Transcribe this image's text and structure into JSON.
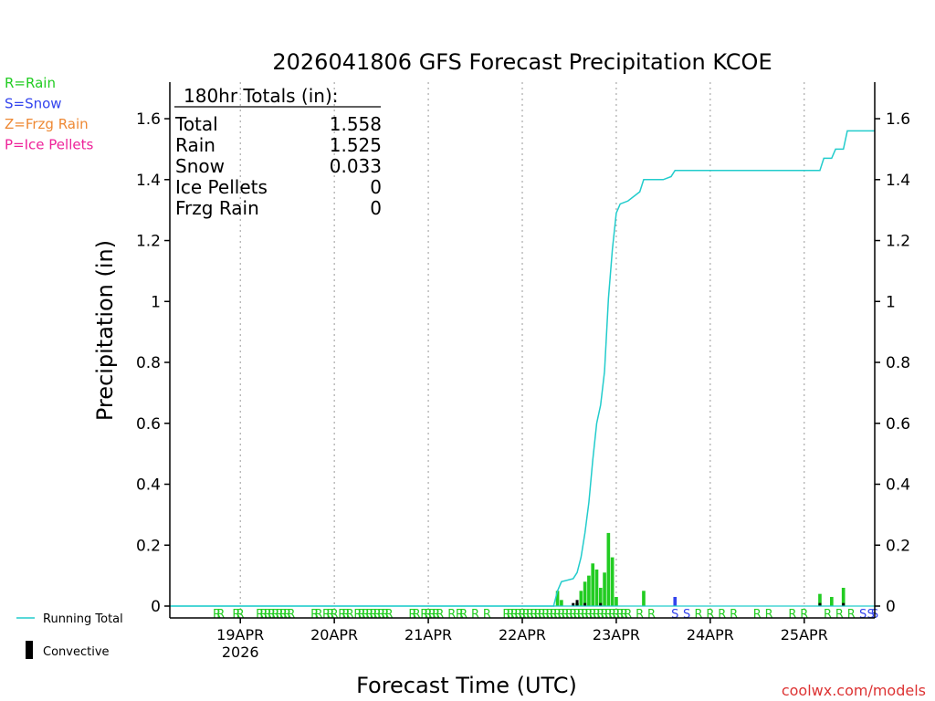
{
  "chart_data": {
    "type": "bar",
    "title": "2026041806 GFS Forecast Precipitation KCOE",
    "xlabel": "Forecast Time (UTC)",
    "ylabel": "Precipitation (in)",
    "ylim": [
      0,
      1.72
    ],
    "y_ticks": [
      0,
      0.2,
      0.4,
      0.6,
      0.8,
      1,
      1.2,
      1.4,
      1.6
    ],
    "y_tick_labels": [
      "0",
      "0.2",
      "0.4",
      "0.6",
      "0.8",
      "1",
      "1.2",
      "1.4",
      "1.6"
    ],
    "x_range_hours": [
      0,
      180
    ],
    "x_ticks_hours": [
      18,
      42,
      66,
      90,
      114,
      138,
      162
    ],
    "x_tick_labels": [
      "19APR",
      "20APR",
      "21APR",
      "22APR",
      "23APR",
      "24APR",
      "25APR"
    ],
    "x_year_label": "2026",
    "grid": "vertical dotted at day boundaries",
    "legend_types": [
      {
        "text": "R=Rain",
        "color": "#22cc22"
      },
      {
        "text": "S=Snow",
        "color": "#3344ee"
      },
      {
        "text": "Z=Frzg Rain",
        "color": "#ee8833"
      },
      {
        "text": "P=Ice Pellets",
        "color": "#ee2299"
      }
    ],
    "legend_lines": [
      {
        "text": "Running Total",
        "color": "#22cccc"
      },
      {
        "text": "Convective",
        "color": "#000000"
      }
    ],
    "totals_box": {
      "title": "180hr Totals (in):",
      "rows": [
        {
          "label": "Total",
          "value": "1.558"
        },
        {
          "label": "Rain",
          "value": "1.525"
        },
        {
          "label": "Snow",
          "value": "0.033"
        },
        {
          "label": "Ice Pellets",
          "value": "0"
        },
        {
          "label": "Frzg Rain",
          "value": "0"
        }
      ]
    },
    "precip_bars": {
      "unit": "in per 1 hr (time in forecast hours)",
      "series": [
        {
          "name": "Rain",
          "color": "#22cc22",
          "points": [
            [
              99,
              0.05
            ],
            [
              100,
              0.02
            ],
            [
              104,
              0.01
            ],
            [
              105,
              0.05
            ],
            [
              106,
              0.08
            ],
            [
              107,
              0.1
            ],
            [
              108,
              0.14
            ],
            [
              109,
              0.12
            ],
            [
              110,
              0.06
            ],
            [
              111,
              0.11
            ],
            [
              112,
              0.24
            ],
            [
              113,
              0.16
            ],
            [
              114,
              0.03
            ],
            [
              121,
              0.05
            ],
            [
              166,
              0.04
            ],
            [
              169,
              0.03
            ],
            [
              172,
              0.06
            ]
          ]
        },
        {
          "name": "Snow",
          "color": "#3344ee",
          "points": [
            [
              129,
              0.03
            ]
          ]
        }
      ]
    },
    "convective_bars": [
      [
        103,
        0.01
      ],
      [
        104,
        0.02
      ],
      [
        106,
        0.01
      ],
      [
        110,
        0.01
      ],
      [
        166,
        0.01
      ],
      [
        172,
        0.01
      ]
    ],
    "running_total": {
      "name": "Running Total",
      "color": "#22cccc",
      "points": [
        [
          0,
          0
        ],
        [
          98,
          0
        ],
        [
          99,
          0.05
        ],
        [
          100,
          0.08
        ],
        [
          103,
          0.09
        ],
        [
          104,
          0.11
        ],
        [
          105,
          0.16
        ],
        [
          106,
          0.24
        ],
        [
          107,
          0.34
        ],
        [
          108,
          0.48
        ],
        [
          109,
          0.6
        ],
        [
          110,
          0.66
        ],
        [
          111,
          0.77
        ],
        [
          112,
          1.01
        ],
        [
          113,
          1.17
        ],
        [
          114,
          1.29
        ],
        [
          115,
          1.32
        ],
        [
          117,
          1.33
        ],
        [
          120,
          1.36
        ],
        [
          121,
          1.4
        ],
        [
          126,
          1.4
        ],
        [
          128,
          1.41
        ],
        [
          129,
          1.43
        ],
        [
          164,
          1.43
        ],
        [
          166,
          1.43
        ],
        [
          167,
          1.47
        ],
        [
          169,
          1.47
        ],
        [
          170,
          1.5
        ],
        [
          172,
          1.5
        ],
        [
          173,
          1.56
        ],
        [
          180,
          1.56
        ]
      ]
    },
    "precip_type_codes": {
      "text": "RR RRRRRRRRR RR RRRRRRRRR RRRRR RRR RR RRRRRRRRRRRRRRRRRRRRRRRRRRRRR RR SSRRRR RR RR RRRRSSS",
      "color_R": "#22cc22",
      "color_S": "#3344ee",
      "points": [
        [
          12,
          "R"
        ],
        [
          13,
          "R"
        ],
        [
          17,
          "R"
        ],
        [
          18,
          "R"
        ],
        [
          23,
          "R"
        ],
        [
          24,
          "R"
        ],
        [
          25,
          "R"
        ],
        [
          26,
          "R"
        ],
        [
          27,
          "R"
        ],
        [
          28,
          "R"
        ],
        [
          29,
          "R"
        ],
        [
          30,
          "R"
        ],
        [
          31,
          "R"
        ],
        [
          37,
          "R"
        ],
        [
          38,
          "R"
        ],
        [
          40,
          "R"
        ],
        [
          41,
          "R"
        ],
        [
          42,
          "R"
        ],
        [
          44,
          "R"
        ],
        [
          45,
          "R"
        ],
        [
          46,
          "R"
        ],
        [
          48,
          "R"
        ],
        [
          49,
          "R"
        ],
        [
          50,
          "R"
        ],
        [
          51,
          "R"
        ],
        [
          52,
          "R"
        ],
        [
          53,
          "R"
        ],
        [
          54,
          "R"
        ],
        [
          55,
          "R"
        ],
        [
          56,
          "R"
        ],
        [
          62,
          "R"
        ],
        [
          63,
          "R"
        ],
        [
          65,
          "R"
        ],
        [
          66,
          "R"
        ],
        [
          67,
          "R"
        ],
        [
          68,
          "R"
        ],
        [
          69,
          "R"
        ],
        [
          72,
          "R"
        ],
        [
          74,
          "R"
        ],
        [
          75,
          "R"
        ],
        [
          78,
          "R"
        ],
        [
          81,
          "R"
        ],
        [
          86,
          "R"
        ],
        [
          87,
          "R"
        ],
        [
          88,
          "R"
        ],
        [
          89,
          "R"
        ],
        [
          90,
          "R"
        ],
        [
          91,
          "R"
        ],
        [
          92,
          "R"
        ],
        [
          93,
          "R"
        ],
        [
          94,
          "R"
        ],
        [
          95,
          "R"
        ],
        [
          96,
          "R"
        ],
        [
          97,
          "R"
        ],
        [
          98,
          "R"
        ],
        [
          99,
          "R"
        ],
        [
          100,
          "R"
        ],
        [
          101,
          "R"
        ],
        [
          102,
          "R"
        ],
        [
          103,
          "R"
        ],
        [
          104,
          "R"
        ],
        [
          105,
          "R"
        ],
        [
          106,
          "R"
        ],
        [
          107,
          "R"
        ],
        [
          108,
          "R"
        ],
        [
          109,
          "R"
        ],
        [
          110,
          "R"
        ],
        [
          111,
          "R"
        ],
        [
          112,
          "R"
        ],
        [
          113,
          "R"
        ],
        [
          114,
          "R"
        ],
        [
          115,
          "R"
        ],
        [
          116,
          "R"
        ],
        [
          117,
          "R"
        ],
        [
          120,
          "R"
        ],
        [
          123,
          "R"
        ],
        [
          129,
          "S"
        ],
        [
          132,
          "S"
        ],
        [
          135,
          "R"
        ],
        [
          138,
          "R"
        ],
        [
          141,
          "R"
        ],
        [
          144,
          "R"
        ],
        [
          150,
          "R"
        ],
        [
          153,
          "R"
        ],
        [
          159,
          "R"
        ],
        [
          162,
          "R"
        ],
        [
          168,
          "R"
        ],
        [
          171,
          "R"
        ],
        [
          174,
          "R"
        ],
        [
          177,
          "S"
        ],
        [
          179,
          "S"
        ],
        [
          180,
          "S"
        ]
      ]
    },
    "credit": "coolwx.com/models"
  }
}
